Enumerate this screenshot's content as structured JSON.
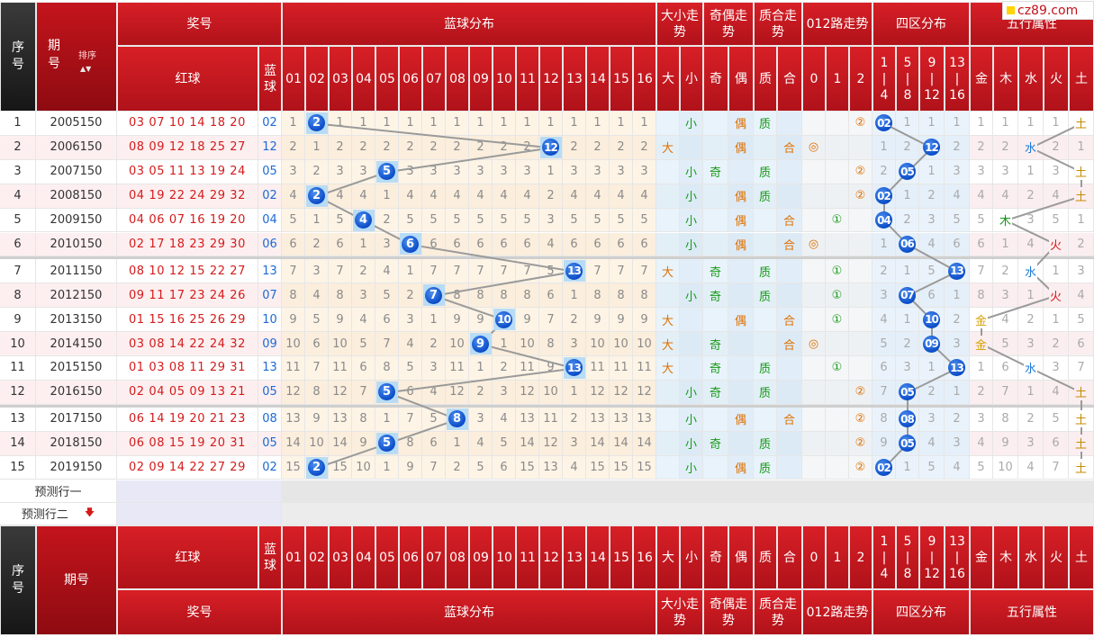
{
  "logo_text": "cz89.com",
  "header": {
    "seq": "序号",
    "issue": "期号",
    "sort": "排序",
    "prize": "奖号",
    "blue_dist": "蓝球分布",
    "bigsmall": "大小走势",
    "oddeven": "奇偶走势",
    "primecomp": "质合走势",
    "road": "012路走势",
    "zone": "四区分布",
    "wuxing": "五行属性",
    "red": "红球",
    "blue": "蓝球",
    "blue_nums": [
      "01",
      "02",
      "03",
      "04",
      "05",
      "06",
      "07",
      "08",
      "09",
      "10",
      "11",
      "12",
      "13",
      "14",
      "15",
      "16"
    ],
    "bs_labels": [
      "大",
      "小"
    ],
    "oe_labels": [
      "奇",
      "偶"
    ],
    "pc_labels": [
      "质",
      "合"
    ],
    "road_labels": [
      "0",
      "1",
      "2"
    ],
    "zone_labels": [
      "1\n|\n4",
      "5\n|\n8",
      "9\n|\n12",
      "13\n|\n16"
    ],
    "wx_labels": [
      "金",
      "木",
      "水",
      "火",
      "土"
    ]
  },
  "rows": [
    {
      "seq": "1",
      "issue": "2005150",
      "reds": "03 07 10 14 18 20",
      "blue": "02",
      "b": 2,
      "dist": [
        "1",
        "",
        "1",
        "1",
        "1",
        "1",
        "1",
        "1",
        "1",
        "1",
        "1",
        "1",
        "1",
        "1",
        "1",
        "1"
      ],
      "bs": "小",
      "oe": "偶",
      "pc": "质",
      "road": "②",
      "zone": [
        "02",
        "1",
        "1",
        "1"
      ],
      "wx": [
        "1",
        "1",
        "1",
        "1",
        "土"
      ]
    },
    {
      "seq": "2",
      "issue": "2006150",
      "reds": "08 09 12 18 25 27",
      "blue": "12",
      "b": 12,
      "dist": [
        "2",
        "1",
        "2",
        "2",
        "2",
        "2",
        "2",
        "2",
        "2",
        "2",
        "2",
        "",
        "2",
        "2",
        "2",
        "2"
      ],
      "bs": "大",
      "oe": "偶",
      "pc": "合",
      "road": "◎",
      "zone": [
        "1",
        "2",
        "12",
        "2"
      ],
      "wx": [
        "2",
        "2",
        "水",
        "2",
        "1"
      ]
    },
    {
      "seq": "3",
      "issue": "2007150",
      "reds": "03 05 11 13 19 24",
      "blue": "05",
      "b": 5,
      "dist": [
        "3",
        "2",
        "3",
        "3",
        "",
        "3",
        "3",
        "3",
        "3",
        "3",
        "3",
        "1",
        "3",
        "3",
        "3",
        "3"
      ],
      "bs": "小",
      "oe": "奇",
      "pc": "质",
      "road": "②",
      "zone": [
        "2",
        "05",
        "1",
        "3"
      ],
      "wx": [
        "3",
        "3",
        "1",
        "3",
        "土"
      ]
    },
    {
      "seq": "4",
      "issue": "2008150",
      "reds": "04 19 22 24 29 32",
      "blue": "02",
      "b": 2,
      "dist": [
        "4",
        "",
        "4",
        "4",
        "1",
        "4",
        "4",
        "4",
        "4",
        "4",
        "4",
        "2",
        "4",
        "4",
        "4",
        "4"
      ],
      "bs": "小",
      "oe": "偶",
      "pc": "质",
      "road": "②",
      "zone": [
        "02",
        "1",
        "2",
        "4"
      ],
      "wx": [
        "4",
        "4",
        "2",
        "4",
        "土"
      ]
    },
    {
      "seq": "5",
      "issue": "2009150",
      "reds": "04 06 07 16 19 20",
      "blue": "04",
      "b": 4,
      "dist": [
        "5",
        "1",
        "5",
        "",
        "2",
        "5",
        "5",
        "5",
        "5",
        "5",
        "5",
        "3",
        "5",
        "5",
        "5",
        "5"
      ],
      "bs": "小",
      "oe": "偶",
      "pc": "合",
      "road": "①",
      "zone": [
        "04",
        "2",
        "3",
        "5"
      ],
      "wx": [
        "5",
        "木",
        "3",
        "5",
        "1"
      ]
    },
    {
      "seq": "6",
      "issue": "2010150",
      "reds": "02 17 18 23 29 30",
      "blue": "06",
      "b": 6,
      "dist": [
        "6",
        "2",
        "6",
        "1",
        "3",
        "",
        "6",
        "6",
        "6",
        "6",
        "6",
        "4",
        "6",
        "6",
        "6",
        "6"
      ],
      "bs": "小",
      "oe": "偶",
      "pc": "合",
      "road": "◎",
      "zone": [
        "1",
        "06",
        "4",
        "6"
      ],
      "wx": [
        "6",
        "1",
        "4",
        "火",
        "2"
      ]
    },
    {
      "seq": "7",
      "issue": "2011150",
      "reds": "08 10 12 15 22 27",
      "blue": "13",
      "b": 13,
      "dist": [
        "7",
        "3",
        "7",
        "2",
        "4",
        "1",
        "7",
        "7",
        "7",
        "7",
        "7",
        "5",
        "",
        "7",
        "7",
        "7"
      ],
      "bs": "大",
      "oe": "奇",
      "pc": "质",
      "road": "①",
      "zone": [
        "2",
        "1",
        "5",
        "13"
      ],
      "wx": [
        "7",
        "2",
        "水",
        "1",
        "3"
      ]
    },
    {
      "seq": "8",
      "issue": "2012150",
      "reds": "09 11 17 23 24 26",
      "blue": "07",
      "b": 7,
      "dist": [
        "8",
        "4",
        "8",
        "3",
        "5",
        "2",
        "",
        "8",
        "8",
        "8",
        "8",
        "6",
        "1",
        "8",
        "8",
        "8"
      ],
      "bs": "小",
      "oe": "奇",
      "pc": "质",
      "road": "①",
      "zone": [
        "3",
        "07",
        "6",
        "1"
      ],
      "wx": [
        "8",
        "3",
        "1",
        "火",
        "4"
      ]
    },
    {
      "seq": "9",
      "issue": "2013150",
      "reds": "01 15 16 25 26 29",
      "blue": "10",
      "b": 10,
      "dist": [
        "9",
        "5",
        "9",
        "4",
        "6",
        "3",
        "1",
        "9",
        "9",
        "",
        "9",
        "7",
        "2",
        "9",
        "9",
        "9"
      ],
      "bs": "大",
      "oe": "偶",
      "pc": "合",
      "road": "①",
      "zone": [
        "4",
        "1",
        "10",
        "2"
      ],
      "wx": [
        "金",
        "4",
        "2",
        "1",
        "5"
      ]
    },
    {
      "seq": "10",
      "issue": "2014150",
      "reds": "03 08 14 22 24 32",
      "blue": "09",
      "b": 9,
      "dist": [
        "10",
        "6",
        "10",
        "5",
        "7",
        "4",
        "2",
        "10",
        "",
        "1",
        "10",
        "8",
        "3",
        "10",
        "10",
        "10"
      ],
      "bs": "大",
      "oe": "奇",
      "pc": "合",
      "road": "◎",
      "zone": [
        "5",
        "2",
        "09",
        "3"
      ],
      "wx": [
        "金",
        "5",
        "3",
        "2",
        "6"
      ]
    },
    {
      "seq": "11",
      "issue": "2015150",
      "reds": "01 03 08 11 29 31",
      "blue": "13",
      "b": 13,
      "dist": [
        "11",
        "7",
        "11",
        "6",
        "8",
        "5",
        "3",
        "11",
        "1",
        "2",
        "11",
        "9",
        "",
        "11",
        "11",
        "11"
      ],
      "bs": "大",
      "oe": "奇",
      "pc": "质",
      "road": "①",
      "zone": [
        "6",
        "3",
        "1",
        "13"
      ],
      "wx": [
        "1",
        "6",
        "水",
        "3",
        "7"
      ]
    },
    {
      "seq": "12",
      "issue": "2016150",
      "reds": "02 04 05 09 13 21",
      "blue": "05",
      "b": 5,
      "dist": [
        "12",
        "8",
        "12",
        "7",
        "",
        "6",
        "4",
        "12",
        "2",
        "3",
        "12",
        "10",
        "1",
        "12",
        "12",
        "12"
      ],
      "bs": "小",
      "oe": "奇",
      "pc": "质",
      "road": "②",
      "zone": [
        "7",
        "05",
        "2",
        "1"
      ],
      "wx": [
        "2",
        "7",
        "1",
        "4",
        "土"
      ]
    },
    {
      "seq": "13",
      "issue": "2017150",
      "reds": "06 14 19 20 21 23",
      "blue": "08",
      "b": 8,
      "dist": [
        "13",
        "9",
        "13",
        "8",
        "1",
        "7",
        "5",
        "",
        "3",
        "4",
        "13",
        "11",
        "2",
        "13",
        "13",
        "13"
      ],
      "bs": "小",
      "oe": "偶",
      "pc": "合",
      "road": "②",
      "zone": [
        "8",
        "08",
        "3",
        "2"
      ],
      "wx": [
        "3",
        "8",
        "2",
        "5",
        "土"
      ]
    },
    {
      "seq": "14",
      "issue": "2018150",
      "reds": "06 08 15 19 20 31",
      "blue": "05",
      "b": 5,
      "dist": [
        "14",
        "10",
        "14",
        "9",
        "",
        "8",
        "6",
        "1",
        "4",
        "5",
        "14",
        "12",
        "3",
        "14",
        "14",
        "14"
      ],
      "bs": "小",
      "oe": "奇",
      "pc": "质",
      "road": "②",
      "zone": [
        "9",
        "05",
        "4",
        "3"
      ],
      "wx": [
        "4",
        "9",
        "3",
        "6",
        "土"
      ]
    },
    {
      "seq": "15",
      "issue": "2019150",
      "reds": "02 09 14 22 27 29",
      "blue": "02",
      "b": 2,
      "dist": [
        "15",
        "",
        "15",
        "10",
        "1",
        "9",
        "7",
        "2",
        "5",
        "6",
        "15",
        "13",
        "4",
        "15",
        "15",
        "15"
      ],
      "bs": "小",
      "oe": "偶",
      "pc": "质",
      "road": "②",
      "zone": [
        "02",
        "1",
        "5",
        "4"
      ],
      "wx": [
        "5",
        "10",
        "4",
        "7",
        "土"
      ]
    }
  ],
  "predict": [
    "预测行一",
    "预测行二"
  ],
  "colors": {
    "red_header": "#c8161d",
    "dark_header": "#222222",
    "ball": "#1256d6",
    "line": "#9a9a9a",
    "orange": "#e07000",
    "green": "#169916",
    "blue_text": "#1a7ad8",
    "gold": "#d6a000"
  }
}
